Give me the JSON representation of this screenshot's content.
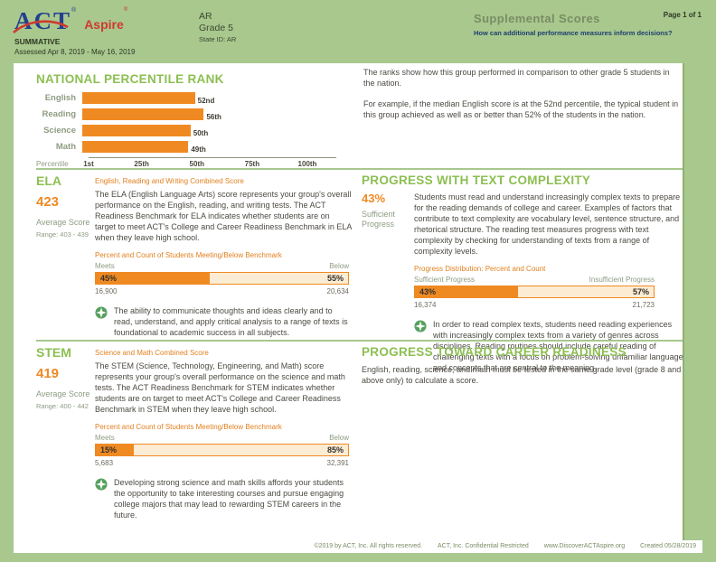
{
  "header": {
    "logo": {
      "act": "ACT",
      "aspire": "Aspire",
      "reg": "®"
    },
    "program": "SUMMATIVE",
    "assessed": "Assessed Apr 8, 2019 - May 16, 2019",
    "org": "AR",
    "grade": "Grade 5",
    "state_id": "State ID: AR",
    "report_title": "Supplemental Scores",
    "report_subtitle": "How can additional performance measures inform decisions?",
    "page": "Page 1 of 1"
  },
  "npr": {
    "title": "NATIONAL PERCENTILE RANK",
    "axis_label": "Percentile",
    "description_1": "The ranks show how this group performed in comparison to other grade 5 students in the nation.",
    "description_2": "For example, if the median English score is at the 52nd percentile, the typical student in this group achieved as well as or better than 52% of the students in the nation."
  },
  "chart_data": [
    {
      "type": "bar",
      "orientation": "horizontal",
      "title": "NATIONAL PERCENTILE RANK",
      "categories": [
        "English",
        "Reading",
        "Science",
        "Math"
      ],
      "values": [
        52,
        56,
        50,
        49
      ],
      "value_labels": [
        "52nd",
        "56th",
        "50th",
        "49th"
      ],
      "xlabel": "Percentile",
      "xlim": [
        1,
        100
      ],
      "x_ticks": [
        {
          "value": 1,
          "label": "1st"
        },
        {
          "value": 25,
          "label": "25th"
        },
        {
          "value": 50,
          "label": "50th"
        },
        {
          "value": 75,
          "label": "75th"
        },
        {
          "value": 100,
          "label": "100th"
        }
      ],
      "bar_color": "#ef8a23",
      "grid": false,
      "legend": false
    },
    {
      "type": "bar",
      "subtype": "stacked-percent",
      "title": "ELA — Percent and Count of Students Meeting/Below Benchmark",
      "categories": [
        "Meets",
        "Below"
      ],
      "values": [
        45,
        55
      ],
      "counts": [
        16900,
        20634
      ]
    },
    {
      "type": "bar",
      "subtype": "stacked-percent",
      "title": "Progress Distribution: Percent and Count",
      "categories": [
        "Sufficient Progress",
        "Insufficient Progress"
      ],
      "values": [
        43,
        57
      ],
      "counts": [
        16374,
        21723
      ]
    },
    {
      "type": "bar",
      "subtype": "stacked-percent",
      "title": "STEM — Percent and Count of Students Meeting/Below Benchmark",
      "categories": [
        "Meets",
        "Below"
      ],
      "values": [
        15,
        85
      ],
      "counts": [
        5683,
        32391
      ]
    }
  ],
  "ela": {
    "title": "ELA",
    "score": "423",
    "score_label": "Average Score",
    "range": "Range: 403 - 439",
    "combined_label": "English, Reading and Writing Combined Score",
    "description": "The ELA (English Language Arts) score represents your group's overall performance on the English, reading, and writing tests. The ACT Readiness Benchmark for ELA indicates whether students are on target to meet ACT's College and Career Readiness Benchmark in ELA when they leave high school.",
    "benchmark_label": "Percent and Count of Students Meeting/Below Benchmark",
    "meets_label": "Meets",
    "below_label": "Below",
    "meets_pct": "45%",
    "below_pct": "55%",
    "meets_value": 45,
    "meets_count": "16,900",
    "below_count": "20,634",
    "insight": "The ability to communicate thoughts and ideas clearly and to read, understand, and apply critical analysis to a range of texts is foundational to academic success in all subjects."
  },
  "text_complexity": {
    "title": "PROGRESS WITH TEXT COMPLEXITY",
    "pct": "43%",
    "pct_label": "Sufficient Progress",
    "sufficient_value": 43,
    "description": "Students must read and understand increasingly complex texts to prepare for the reading demands of college and career. Examples of factors that contribute to text complexity are vocabulary level, sentence structure, and rhetorical structure. The reading test measures progress with text complexity by checking for understanding of texts from a range of complexity levels.",
    "distribution_label": "Progress Distribution: Percent and Count",
    "sufficient_label": "Sufficient Progress",
    "insufficient_label": "Insufficient Progress",
    "sufficient_pct": "43%",
    "insufficient_pct": "57%",
    "sufficient_count": "16,374",
    "insufficient_count": "21,723",
    "insight": "In order to read complex texts, students need reading experiences with increasingly complex texts from a variety of genres across disciplines. Reading routines should include careful reading of challenging texts with a focus on problem-solving unfamiliar language and concepts that are central to the meaning."
  },
  "stem": {
    "title": "STEM",
    "score": "419",
    "score_label": "Average Score",
    "range": "Range: 400 - 442",
    "combined_label": "Science and Math Combined Score",
    "description": "The STEM (Science, Technology, Engineering, and Math) score represents your group's overall performance on the science and math tests. The ACT Readiness Benchmark for STEM indicates whether students are on target to meet ACT's College and Career Readiness Benchmark in STEM when they leave high school.",
    "benchmark_label": "Percent and Count of Students Meeting/Below Benchmark",
    "meets_label": "Meets",
    "below_label": "Below",
    "meets_pct": "15%",
    "below_pct": "85%",
    "meets_value": 15,
    "meets_count": "5,683",
    "below_count": "32,391",
    "insight": "Developing strong science and math skills affords your students the opportunity to take interesting courses and pursue engaging college majors that may lead to rewarding STEM careers in the future."
  },
  "career_readiness": {
    "title": "PROGRESS TOWARD CAREER READINESS",
    "description": "English, reading, science, and math must be tested in the same grade level (grade 8 and above only) to calculate a score."
  },
  "footer": {
    "copyright": "©2019 by ACT, Inc. All rights reserved.",
    "confidential": "ACT, Inc. Confidential Restricted",
    "website": "www.DiscoverACTAspire.org",
    "created": "Created 05/28/2019"
  },
  "colors": {
    "page_green": "#a8c88e",
    "heading_green": "#8cbf52",
    "bar_orange": "#ef8a23",
    "bar_cream": "#fcecd3",
    "logo_blue": "#23408f",
    "logo_red": "#cf3a30",
    "subtitle_navy": "#1e3e6e",
    "muted_green_text": "#8e9c82",
    "insight_icon_green": "#55a05e"
  }
}
